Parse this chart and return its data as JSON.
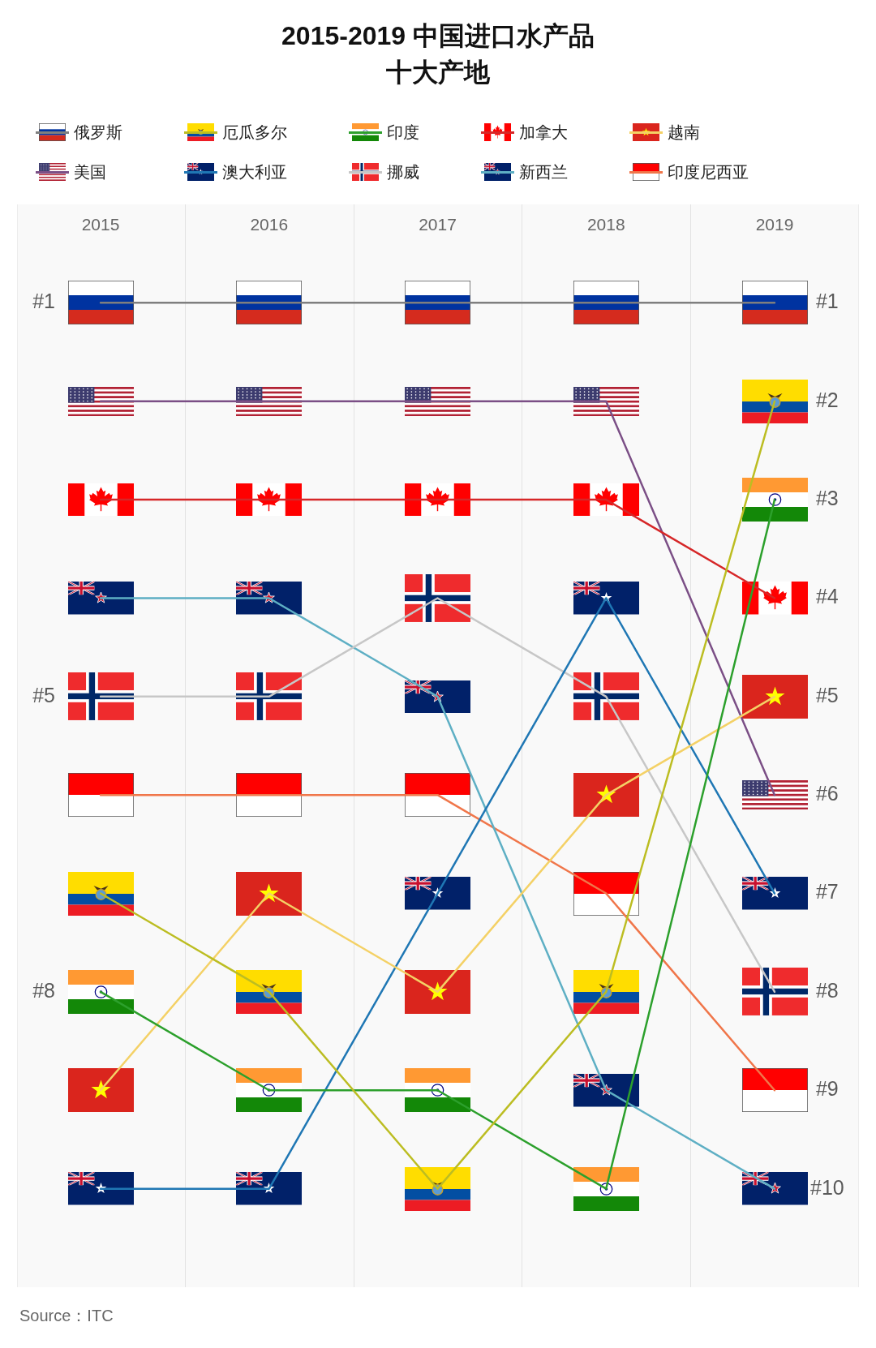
{
  "chart_data": {
    "type": "line",
    "title": "2015-2019 中国进口水产品十大产地",
    "categories": [
      "2015",
      "2016",
      "2017",
      "2018",
      "2019"
    ],
    "series": [
      {
        "name": "俄罗斯",
        "color": "#7f7f7f",
        "values": [
          1,
          1,
          1,
          1,
          1
        ]
      },
      {
        "name": "厄瓜多尔",
        "color": "#bcbd22",
        "values": [
          7,
          8,
          10,
          8,
          2
        ],
        "marker": "circle"
      },
      {
        "name": "印度",
        "color": "#2ca02c",
        "values": [
          8,
          9,
          9,
          10,
          3
        ],
        "marker": "circle"
      },
      {
        "name": "加拿大",
        "color": "#d62728",
        "values": [
          3,
          3,
          3,
          3,
          4
        ],
        "marker": "star"
      },
      {
        "name": "越南",
        "color": "#f4d166",
        "values": [
          9,
          7,
          8,
          6,
          5
        ],
        "marker": "star"
      },
      {
        "name": "美国",
        "color": "#7b4f86",
        "values": [
          2,
          2,
          2,
          2,
          6
        ]
      },
      {
        "name": "澳大利亚",
        "color": "#1f77b4",
        "values": [
          10,
          10,
          7,
          4,
          7
        ],
        "marker": "star"
      },
      {
        "name": "挪威",
        "color": "#c7c7c7",
        "values": [
          5,
          5,
          4,
          5,
          8
        ]
      },
      {
        "name": "新西兰",
        "color": "#5eafc4",
        "values": [
          4,
          4,
          5,
          9,
          10
        ],
        "marker": "star"
      },
      {
        "name": "印度尼西亚",
        "color": "#f0764a",
        "values": [
          6,
          6,
          6,
          7,
          9
        ]
      }
    ],
    "ylim": [
      11,
      0
    ],
    "yticks": [
      {
        "value": 1,
        "label": "#1"
      },
      {
        "value": 5,
        "label": "#5"
      },
      {
        "value": 8,
        "label": "#8"
      }
    ],
    "y2lim": [
      11,
      0
    ],
    "y2ticks": [
      {
        "value": 1,
        "label": "#1"
      },
      {
        "value": 2,
        "label": "#2"
      },
      {
        "value": 3,
        "label": "#3"
      },
      {
        "value": 4,
        "label": "#4"
      },
      {
        "value": 5,
        "label": "#5"
      },
      {
        "value": 6,
        "label": "#6"
      },
      {
        "value": 7,
        "label": "#7"
      },
      {
        "value": 8,
        "label": "#8"
      },
      {
        "value": 9,
        "label": "#9"
      },
      {
        "value": 10,
        "label": "#10"
      }
    ],
    "legend": "top",
    "line_style": "solid",
    "annotations": [
      "Source：ITC"
    ]
  }
}
